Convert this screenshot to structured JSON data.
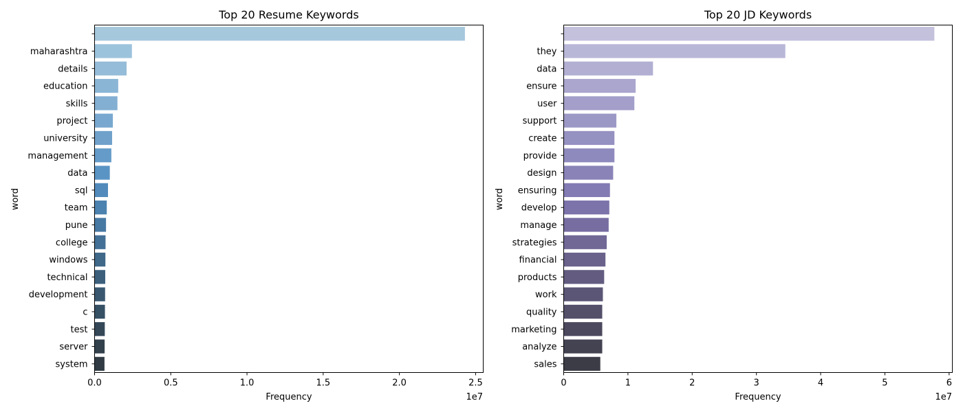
{
  "chart_data": [
    {
      "type": "bar",
      "orientation": "horizontal",
      "title": "Top 20 Resume Keywords",
      "xlabel": "Frequency",
      "ylabel": "word",
      "x_offset_label": "1e7",
      "xlim": [
        0,
        2.55
      ],
      "x_ticks": [
        0.0,
        0.5,
        1.0,
        1.5,
        2.0,
        2.5
      ],
      "x_tick_labels": [
        "0.0",
        "0.5",
        "1.0",
        "1.5",
        "2.0",
        "2.5"
      ],
      "grid": false,
      "palette": "Blues_d",
      "categories": [
        "",
        "maharashtra",
        "details",
        "education",
        "skills",
        "project",
        "university",
        "management",
        "data",
        "sql",
        "team",
        "pune",
        "college",
        "windows",
        "technical",
        "development",
        "c",
        "test",
        "server",
        "system"
      ],
      "values": [
        2.43,
        0.245,
        0.21,
        0.155,
        0.15,
        0.12,
        0.115,
        0.11,
        0.1,
        0.088,
        0.08,
        0.075,
        0.072,
        0.071,
        0.07,
        0.069,
        0.068,
        0.067,
        0.066,
        0.065
      ],
      "colors": [
        "#a6c8dd",
        "#9cc3dc",
        "#95bcd8",
        "#8bb5d5",
        "#83afd2",
        "#78a8cf",
        "#6fa1cb",
        "#659bc8",
        "#5a94c4",
        "#528bbb",
        "#4c82af",
        "#4779a3",
        "#437096",
        "#3f6889",
        "#3c607c",
        "#395870",
        "#365064",
        "#344858",
        "#32414c",
        "#303b43"
      ]
    },
    {
      "type": "bar",
      "orientation": "horizontal",
      "title": "Top 20 JD Keywords",
      "xlabel": "Frequency",
      "ylabel": "word",
      "x_offset_label": "1e7",
      "xlim": [
        0,
        6.05
      ],
      "x_ticks": [
        0,
        1,
        2,
        3,
        4,
        5,
        6
      ],
      "x_tick_labels": [
        "0",
        "1",
        "2",
        "3",
        "4",
        "5",
        "6"
      ],
      "grid": false,
      "palette": "Purples_d",
      "categories": [
        "",
        "they",
        "data",
        "ensure",
        "user",
        "support",
        "create",
        "provide",
        "design",
        "ensuring",
        "develop",
        "manage",
        "strategies",
        "financial",
        "products",
        "work",
        "quality",
        "marketing",
        "analyze",
        "sales"
      ],
      "values": [
        5.77,
        3.45,
        1.39,
        1.12,
        1.1,
        0.82,
        0.79,
        0.79,
        0.77,
        0.72,
        0.71,
        0.7,
        0.67,
        0.65,
        0.63,
        0.61,
        0.6,
        0.6,
        0.6,
        0.57
      ],
      "colors": [
        "#c3c1dc",
        "#b9b7d7",
        "#b2afd3",
        "#aaa6ce",
        "#a39fca",
        "#9c98c5",
        "#9591c1",
        "#8f8abd",
        "#8983b8",
        "#837bb3",
        "#7d73ab",
        "#776da1",
        "#716896",
        "#6a628b",
        "#635c80",
        "#5b5675",
        "#54506a",
        "#4c495e",
        "#444352",
        "#3c3c46"
      ]
    }
  ]
}
